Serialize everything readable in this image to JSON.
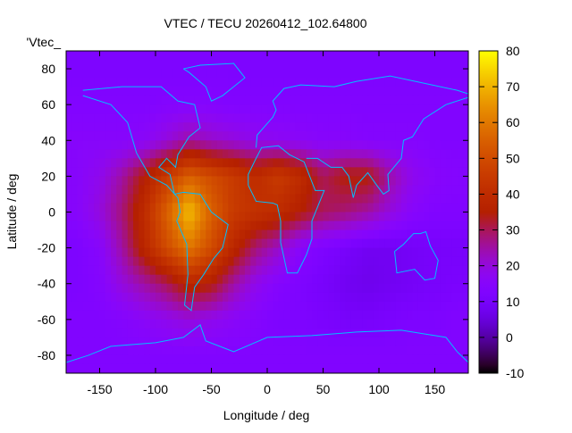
{
  "chart_data": {
    "type": "heatmap",
    "title": "VTEC / TECU 20260412_102.64800",
    "key_label": "'Vtec_",
    "xlabel": "Longitude / deg",
    "ylabel": "Latitude / deg",
    "xlim": [
      -180,
      180
    ],
    "ylim": [
      -90,
      90
    ],
    "cblim": [
      -10,
      80
    ],
    "xticks": [
      -150,
      -100,
      -50,
      0,
      50,
      100,
      150
    ],
    "yticks": [
      -80,
      -60,
      -40,
      -20,
      0,
      20,
      40,
      60,
      80
    ],
    "cbticks": [
      -10,
      0,
      10,
      20,
      30,
      40,
      50,
      60,
      70,
      80
    ],
    "palette": "black-purple-red-yellow (rgbformulae 7,5,15)",
    "coastline_color": "#00c0ff",
    "grid_lon_centers": [
      -170,
      -150,
      -130,
      -110,
      -90,
      -70,
      -50,
      -30,
      -10,
      10,
      30,
      50,
      70,
      90,
      110,
      130,
      150,
      170
    ],
    "grid_lat_centers": [
      80,
      60,
      40,
      20,
      0,
      -20,
      -40,
      -60,
      -80
    ],
    "values": [
      [
        12,
        12,
        12,
        12,
        12,
        12,
        12,
        12,
        12,
        12,
        12,
        12,
        12,
        12,
        12,
        12,
        12,
        12
      ],
      [
        13,
        13,
        13,
        13,
        14,
        14,
        14,
        13,
        13,
        13,
        13,
        13,
        13,
        13,
        13,
        13,
        13,
        13
      ],
      [
        15,
        15,
        15,
        16,
        20,
        25,
        22,
        20,
        18,
        17,
        16,
        15,
        15,
        14,
        14,
        14,
        13,
        13
      ],
      [
        15,
        18,
        25,
        35,
        45,
        55,
        50,
        45,
        40,
        45,
        40,
        30,
        35,
        35,
        25,
        18,
        15,
        14
      ],
      [
        15,
        20,
        28,
        40,
        55,
        72,
        55,
        45,
        42,
        40,
        35,
        30,
        28,
        25,
        20,
        15,
        13,
        13
      ],
      [
        12,
        15,
        25,
        38,
        50,
        60,
        50,
        38,
        28,
        22,
        15,
        12,
        10,
        8,
        8,
        9,
        10,
        10
      ],
      [
        12,
        14,
        20,
        25,
        30,
        38,
        35,
        25,
        18,
        14,
        12,
        10,
        8,
        7,
        8,
        9,
        10,
        11
      ],
      [
        13,
        13,
        14,
        16,
        18,
        20,
        18,
        16,
        14,
        12,
        12,
        11,
        10,
        10,
        11,
        12,
        12,
        13
      ],
      [
        13,
        13,
        13,
        13,
        13,
        13,
        13,
        13,
        13,
        13,
        13,
        13,
        13,
        13,
        13,
        13,
        13,
        13
      ]
    ]
  }
}
